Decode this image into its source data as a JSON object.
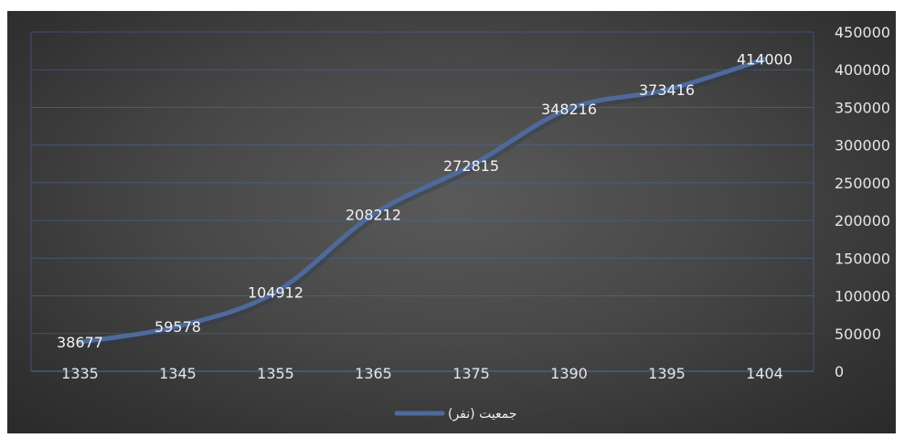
{
  "chart_data": {
    "type": "line",
    "categories": [
      "1335",
      "1345",
      "1355",
      "1365",
      "1375",
      "1390",
      "1395",
      "1404"
    ],
    "series": [
      {
        "name": "جمعیت (نفر)",
        "values": [
          38677,
          59578,
          104912,
          208212,
          272815,
          348216,
          373416,
          414000
        ]
      }
    ],
    "data_labels": [
      "38677",
      "59578",
      "104912",
      "208212",
      "272815",
      "348216",
      "373416",
      "414000"
    ],
    "y_ticks": [
      "0",
      "50000",
      "100000",
      "150000",
      "200000",
      "250000",
      "300000",
      "350000",
      "400000",
      "450000"
    ],
    "ylim": [
      0,
      450000
    ],
    "y_axis_position": "right",
    "grid": true,
    "legend_position": "bottom",
    "colors": {
      "line": "#4e6a9a",
      "gridline": "#4a6aa8",
      "text": "#e6e6e6"
    }
  }
}
